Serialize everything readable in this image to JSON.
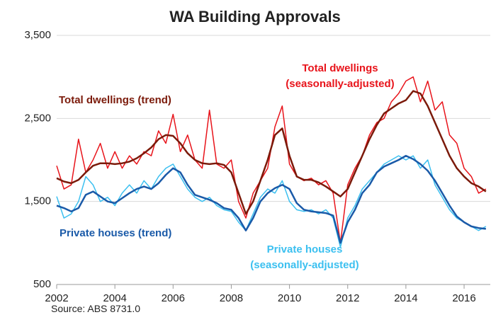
{
  "chart_data": {
    "type": "line",
    "title": "WA Building Approvals",
    "source": "Source: ABS 8731.0",
    "x": [
      2002,
      2002.25,
      2002.5,
      2002.75,
      2003,
      2003.25,
      2003.5,
      2003.75,
      2004,
      2004.25,
      2004.5,
      2004.75,
      2005,
      2005.25,
      2005.5,
      2005.75,
      2006,
      2006.25,
      2006.5,
      2006.75,
      2007,
      2007.25,
      2007.5,
      2007.75,
      2008,
      2008.25,
      2008.5,
      2008.75,
      2009,
      2009.25,
      2009.5,
      2009.75,
      2010,
      2010.25,
      2010.5,
      2010.75,
      2011,
      2011.25,
      2011.5,
      2011.75,
      2012,
      2012.25,
      2012.5,
      2012.75,
      2013,
      2013.25,
      2013.5,
      2013.75,
      2014,
      2014.25,
      2014.5,
      2014.75,
      2015,
      2015.25,
      2015.5,
      2015.75,
      2016,
      2016.25,
      2016.5,
      2016.75
    ],
    "series": [
      {
        "name": "Total dwellings (seasonally-adjusted)",
        "color": "#e8141b",
        "width": 1.5,
        "values": [
          1930,
          1650,
          1700,
          2250,
          1850,
          2000,
          2200,
          1900,
          2100,
          1900,
          2050,
          1950,
          2100,
          2050,
          2350,
          2200,
          2550,
          2100,
          2300,
          2000,
          1900,
          2600,
          1950,
          1900,
          2000,
          1500,
          1300,
          1600,
          1750,
          1900,
          2400,
          2650,
          1950,
          1800,
          1750,
          1780,
          1700,
          1750,
          1600,
          1000,
          1700,
          1900,
          2050,
          2300,
          2450,
          2500,
          2700,
          2800,
          2950,
          3000,
          2700,
          2950,
          2600,
          2700,
          2300,
          2200,
          1900,
          1800,
          1600,
          1650
        ]
      },
      {
        "name": "Total dwellings (trend)",
        "color": "#7b1a0a",
        "width": 2.5,
        "values": [
          1780,
          1740,
          1720,
          1760,
          1850,
          1930,
          1960,
          1960,
          1950,
          1960,
          1980,
          2020,
          2080,
          2150,
          2250,
          2300,
          2290,
          2200,
          2080,
          2000,
          1960,
          1950,
          1960,
          1940,
          1850,
          1600,
          1350,
          1500,
          1750,
          2000,
          2300,
          2380,
          2050,
          1800,
          1760,
          1760,
          1730,
          1680,
          1620,
          1560,
          1650,
          1850,
          2050,
          2250,
          2420,
          2560,
          2620,
          2680,
          2720,
          2830,
          2800,
          2650,
          2450,
          2250,
          2050,
          1900,
          1800,
          1720,
          1680,
          1620
        ]
      },
      {
        "name": "Private houses (seasonally-adjusted)",
        "color": "#3cc0f0",
        "width": 1.5,
        "values": [
          1560,
          1300,
          1350,
          1500,
          1800,
          1700,
          1500,
          1550,
          1450,
          1600,
          1700,
          1600,
          1750,
          1650,
          1800,
          1900,
          1950,
          1800,
          1650,
          1550,
          1500,
          1550,
          1450,
          1400,
          1380,
          1250,
          1150,
          1350,
          1550,
          1650,
          1600,
          1750,
          1500,
          1400,
          1380,
          1400,
          1350,
          1400,
          1300,
          950,
          1300,
          1450,
          1650,
          1750,
          1850,
          1950,
          2000,
          2050,
          2000,
          2050,
          1900,
          2000,
          1700,
          1550,
          1400,
          1300,
          1250,
          1200,
          1150,
          1200
        ]
      },
      {
        "name": "Private houses (trend)",
        "color": "#1a5aa8",
        "width": 2.5,
        "values": [
          1450,
          1420,
          1380,
          1420,
          1580,
          1620,
          1560,
          1500,
          1480,
          1540,
          1600,
          1650,
          1680,
          1650,
          1720,
          1820,
          1900,
          1850,
          1700,
          1580,
          1550,
          1520,
          1480,
          1420,
          1400,
          1300,
          1150,
          1300,
          1500,
          1600,
          1660,
          1700,
          1650,
          1480,
          1400,
          1380,
          1370,
          1360,
          1330,
          1000,
          1250,
          1400,
          1600,
          1700,
          1850,
          1920,
          1960,
          2000,
          2050,
          2010,
          1950,
          1870,
          1750,
          1600,
          1450,
          1320,
          1250,
          1200,
          1180,
          1170
        ]
      }
    ],
    "xlim": [
      2002,
      2016.9
    ],
    "xticks": [
      2002,
      2004,
      2006,
      2008,
      2010,
      2012,
      2014,
      2016
    ],
    "ylim": [
      500,
      3500
    ],
    "yticks": [
      500,
      {
        "value": 1500,
        "label": "1,500"
      },
      {
        "value": 2500,
        "label": "2,500"
      },
      {
        "value": 3500,
        "label": "3,500"
      }
    ],
    "grid": true
  }
}
